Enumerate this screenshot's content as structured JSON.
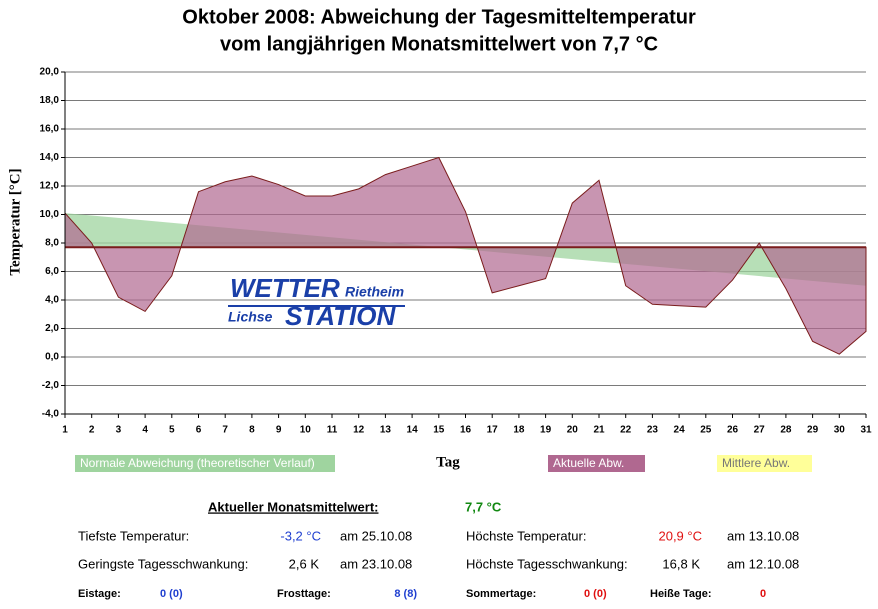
{
  "chart_data": {
    "type": "area",
    "title": [
      "Oktober 2008: Abweichung der Tagesmitteltemperatur",
      "vom langjährigen Monatsmittelwert von 7,7 °C"
    ],
    "y_label": "Temperatur [°C]",
    "x_label": "Tag",
    "x": [
      1,
      2,
      3,
      4,
      5,
      6,
      7,
      8,
      9,
      10,
      11,
      12,
      13,
      14,
      15,
      16,
      17,
      18,
      19,
      20,
      21,
      22,
      23,
      24,
      25,
      26,
      27,
      28,
      29,
      30,
      31
    ],
    "xlim": [
      1,
      31
    ],
    "xticks": [
      1,
      2,
      3,
      4,
      5,
      6,
      7,
      8,
      9,
      10,
      11,
      12,
      13,
      14,
      15,
      16,
      17,
      18,
      19,
      20,
      21,
      22,
      23,
      24,
      25,
      26,
      27,
      28,
      29,
      30,
      31
    ],
    "ylim": [
      -4,
      20
    ],
    "yticks": [
      {
        "value": -4,
        "label": "-4,0"
      },
      {
        "value": -2,
        "label": "-2,0"
      },
      {
        "value": 0,
        "label": "0,0"
      },
      {
        "value": 2,
        "label": "2,0"
      },
      {
        "value": 4,
        "label": "4,0"
      },
      {
        "value": 6,
        "label": "6,0"
      },
      {
        "value": 8,
        "label": "8,0"
      },
      {
        "value": 10,
        "label": "10,0"
      },
      {
        "value": 12,
        "label": "12,0"
      },
      {
        "value": 14,
        "label": "14,0"
      },
      {
        "value": 16,
        "label": "16,0"
      },
      {
        "value": 18,
        "label": "18,0"
      },
      {
        "value": 20,
        "label": "20,0"
      }
    ],
    "grid": true,
    "series": [
      {
        "name": "Normale Abweichung (theoretischer Verlauf)",
        "color": "#9fd49f",
        "x": [
          1,
          31
        ],
        "values": [
          10.1,
          5.0
        ]
      },
      {
        "name": "Aktuelle Abw.",
        "color": "#b06890",
        "values": [
          10.1,
          8.0,
          4.2,
          3.2,
          5.7,
          11.6,
          12.3,
          12.7,
          12.1,
          11.3,
          11.3,
          11.8,
          12.8,
          13.4,
          14.0,
          10.2,
          4.5,
          5.0,
          5.5,
          10.8,
          12.4,
          5.0,
          3.7,
          3.6,
          3.5,
          5.4,
          8.0,
          4.8,
          1.1,
          0.2,
          1.8
        ]
      }
    ],
    "mean": {
      "name": "Mittlere Abw.",
      "value": 7.7,
      "color": "#7a1c1c",
      "legend_color": "#ffff99"
    }
  },
  "logo": [
    "WETTER",
    "Rietheim",
    "Lichse",
    "STATION"
  ],
  "stats": {
    "mean_label": "Aktueller Monatsmittelwert:",
    "mean_value": "7,7 °C",
    "rows": [
      [
        "Tiefste Temperatur:",
        "-3,2 °C",
        "am 25.10.08",
        "Höchste Temperatur:",
        "20,9 °C",
        "am 13.10.08"
      ],
      [
        "Geringste Tagesschwankung:",
        "2,6 K",
        "am 23.10.08",
        "Höchste Tagesschwankung:",
        "16,8 K",
        "am 12.10.08"
      ]
    ],
    "counts": [
      "Eistage:",
      "0 (0)",
      "Frosttage:",
      "8 (8)",
      "Sommertage:",
      "0 (0)",
      "Heiße Tage:",
      "0"
    ]
  }
}
